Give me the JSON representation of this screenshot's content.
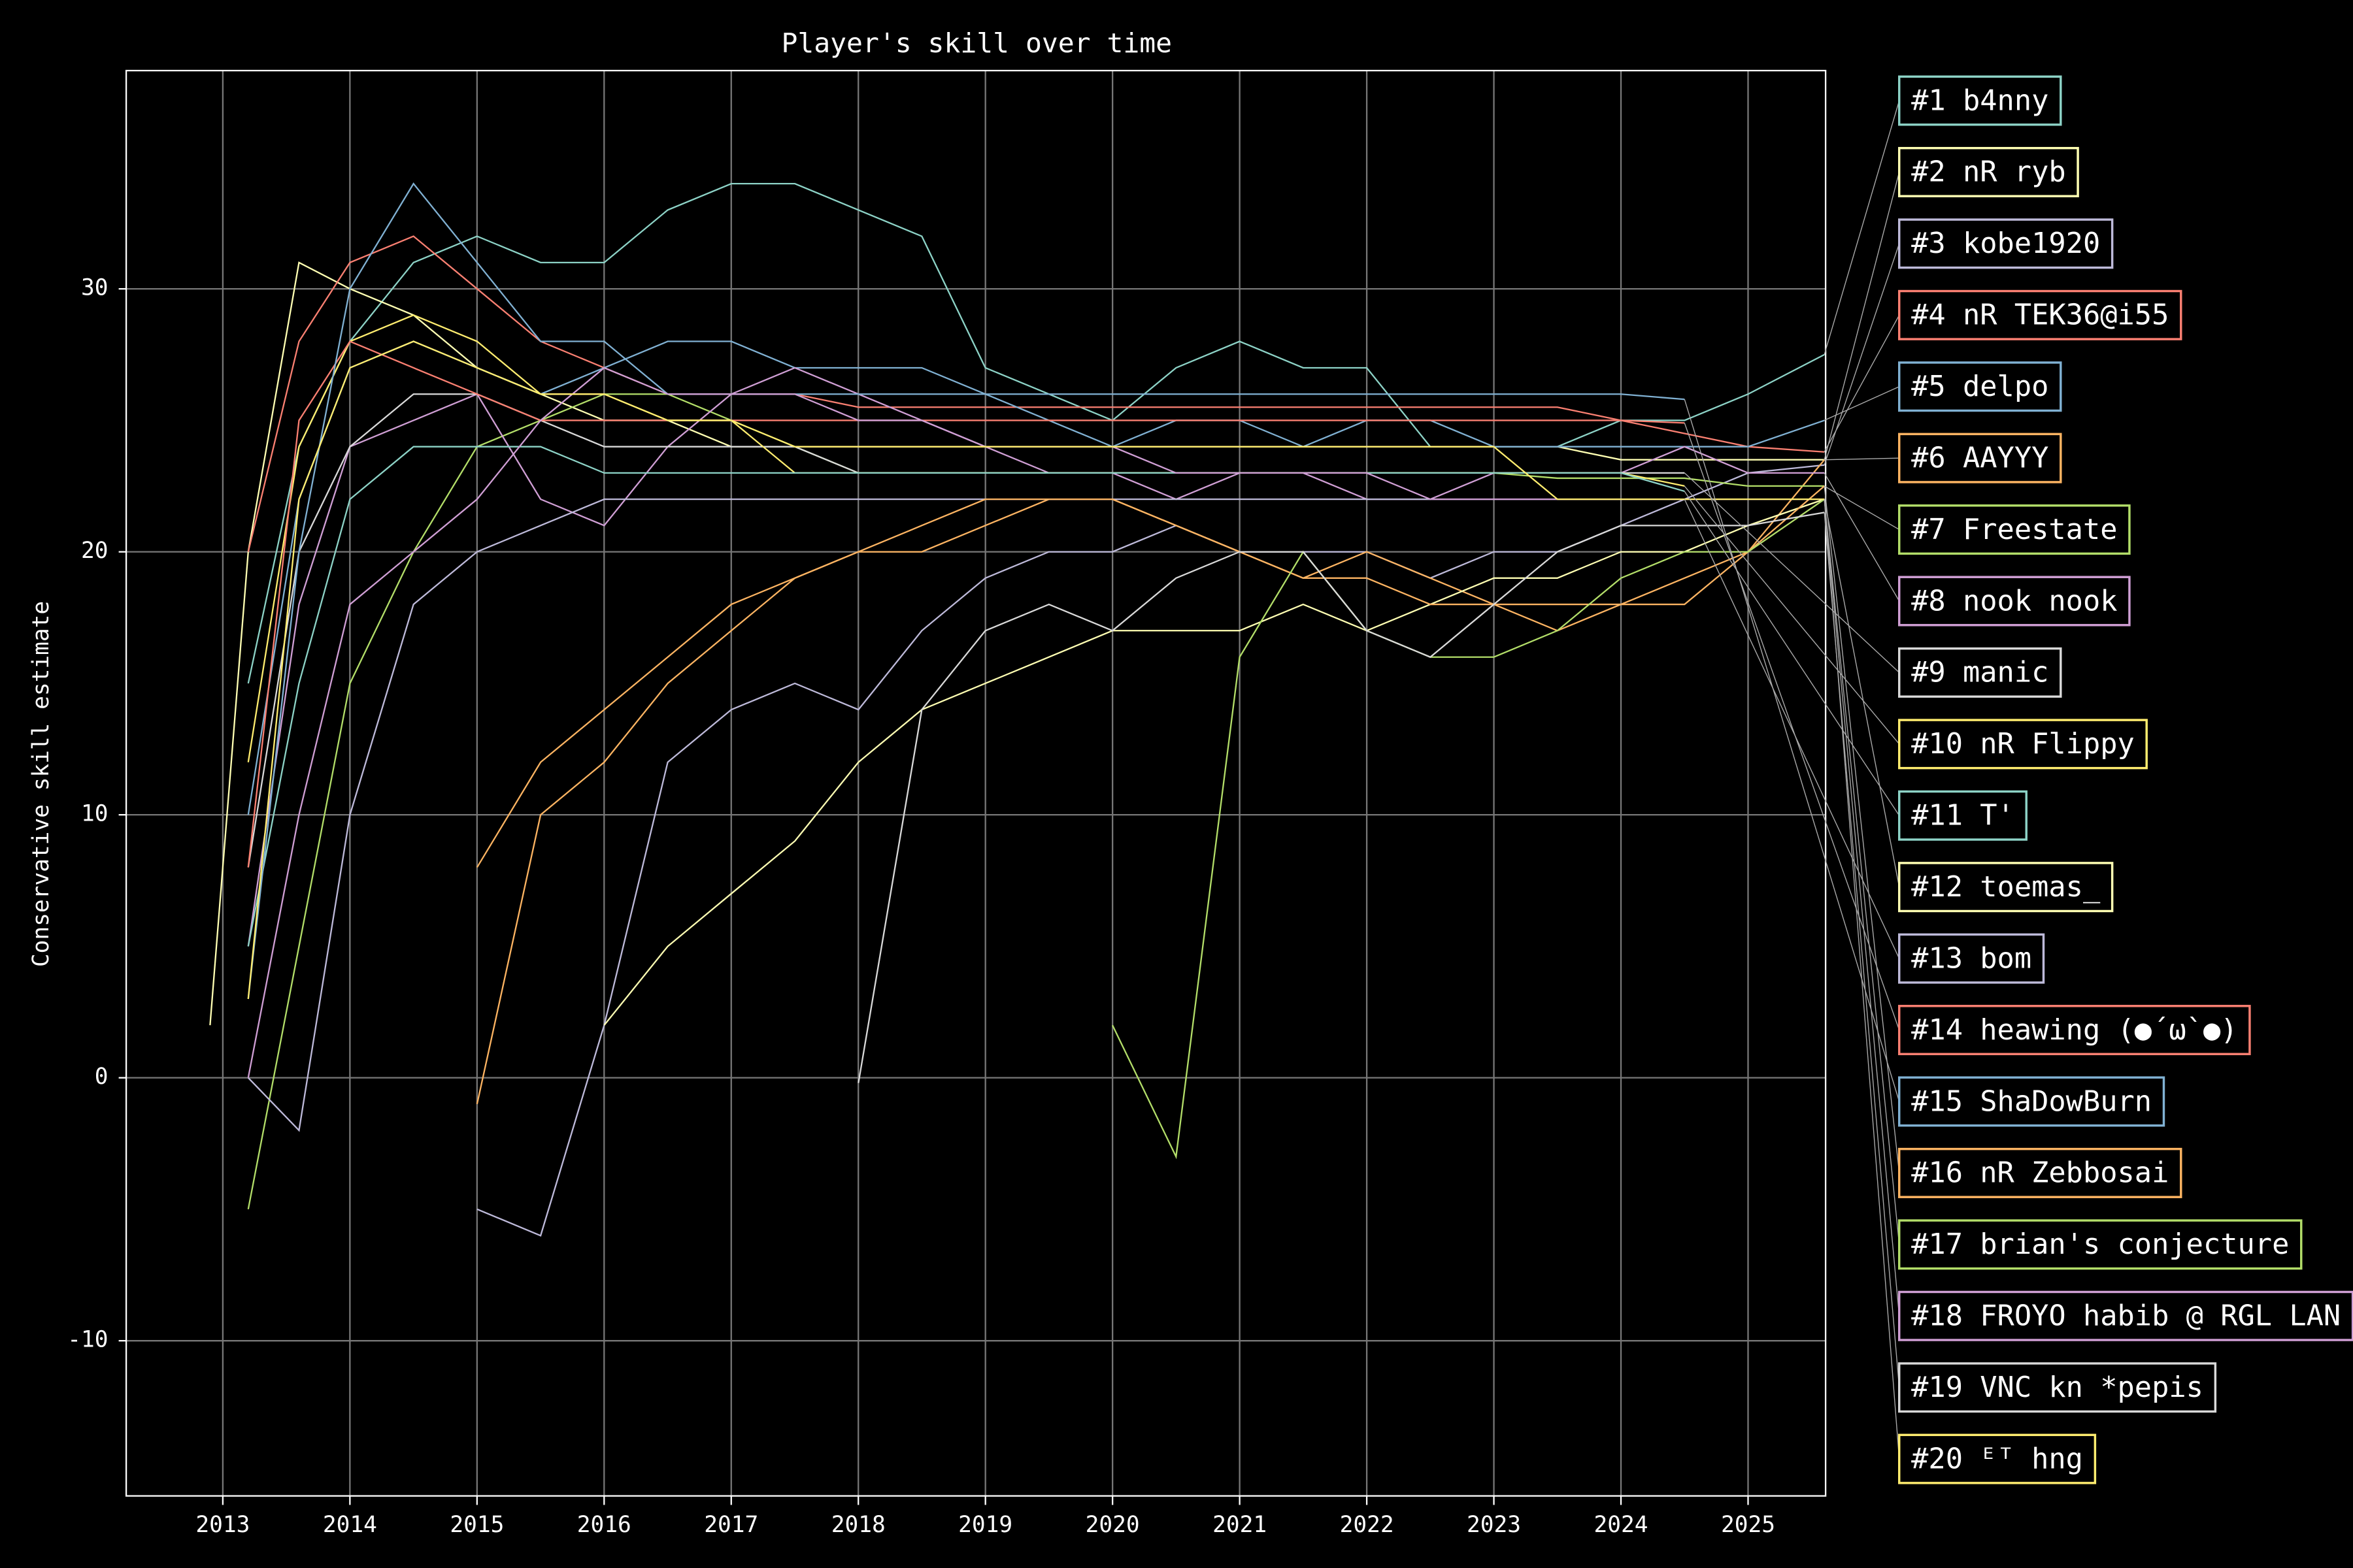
{
  "chart_data": {
    "type": "line",
    "title": "Player's skill over time",
    "y_label": "Conservative skill estimate",
    "x": [
      2012.9,
      2013.2,
      2013.6,
      2014,
      2014.5,
      2015,
      2015.5,
      2016,
      2016.5,
      2017,
      2017.5,
      2018,
      2018.5,
      2019,
      2019.5,
      2020,
      2020.5,
      2021,
      2021.5,
      2022,
      2022.5,
      2023,
      2023.5,
      2024,
      2024.5,
      2025,
      2025.6
    ],
    "xlim": [
      2012.24,
      2025.61
    ],
    "xticks": [
      2013,
      2014,
      2015,
      2016,
      2017,
      2018,
      2019,
      2020,
      2021,
      2022,
      2023,
      2024,
      2025
    ],
    "ylim": [
      -15.9,
      38.3
    ],
    "yticks": [
      -10,
      0,
      10,
      20,
      30
    ],
    "grid": true,
    "legend": "right",
    "series": [
      {
        "name": "#1 b4nny",
        "color": "#8dd3c7",
        "values": [
          null,
          15,
          24,
          28,
          31,
          32,
          31,
          31,
          33,
          34,
          34,
          33,
          32,
          27,
          26,
          25,
          27,
          28,
          27,
          27,
          24,
          24,
          24,
          25,
          25,
          26,
          27.5
        ]
      },
      {
        "name": "#2 nR ryb",
        "color": "#ffffb3",
        "values": [
          2,
          20,
          31,
          30,
          29,
          27,
          26,
          25,
          25,
          24,
          24,
          24,
          24,
          24,
          24,
          24,
          24,
          24,
          24,
          24,
          24,
          24,
          24,
          23.5,
          23.5,
          23.5,
          23.5
        ]
      },
      {
        "name": "#3 kobe1920",
        "color": "#bebada",
        "values": [
          null,
          null,
          null,
          null,
          null,
          -5,
          -6,
          2,
          12,
          14,
          15,
          14,
          17,
          19,
          20,
          20,
          21,
          20,
          20,
          20,
          19,
          20,
          20,
          21,
          22,
          23,
          23.3
        ]
      },
      {
        "name": "#4 nR TEK36@i55",
        "color": "#fb8072",
        "values": [
          null,
          20,
          28,
          31,
          32,
          30,
          28,
          27,
          26,
          26,
          26,
          25.5,
          25.5,
          25.5,
          25.5,
          25.5,
          25.5,
          25.5,
          25.5,
          25.5,
          25.5,
          25.5,
          25.5,
          25,
          24.5,
          24,
          23.8
        ]
      },
      {
        "name": "#5 delpo",
        "color": "#80b1d3",
        "values": [
          null,
          10,
          22,
          27,
          28,
          27,
          26,
          27,
          28,
          28,
          27,
          27,
          27,
          26,
          25,
          24,
          25,
          25,
          24,
          25,
          25,
          24,
          24,
          24,
          24,
          24,
          25
        ]
      },
      {
        "name": "#6 AAYYY",
        "color": "#fdb462",
        "values": [
          null,
          null,
          null,
          null,
          null,
          -1,
          10,
          12,
          15,
          17,
          19,
          20,
          20,
          21,
          22,
          22,
          21,
          20,
          19,
          20,
          19,
          18,
          18,
          18,
          19,
          20,
          23.5
        ]
      },
      {
        "name": "#7 Freestate",
        "color": "#b3de69",
        "values": [
          null,
          -5,
          5,
          15,
          20,
          24,
          25,
          26,
          26,
          25,
          24,
          23,
          23,
          23,
          23,
          23,
          23,
          23,
          23,
          23,
          23,
          23,
          22.8,
          22.8,
          22.8,
          22.5,
          22.5
        ]
      },
      {
        "name": "#8 nook nook",
        "color": "#d09fd5",
        "values": [
          null,
          5,
          18,
          24,
          25,
          26,
          22,
          21,
          24,
          26,
          27,
          26,
          25,
          24,
          23,
          23,
          22,
          23,
          23,
          22,
          22,
          23,
          23,
          23,
          24,
          23,
          23
        ]
      },
      {
        "name": "#9 manic",
        "color": "#d9d9d9",
        "values": [
          null,
          8,
          20,
          24,
          26,
          26,
          25,
          24,
          24,
          24,
          24,
          23,
          23,
          23,
          23,
          23,
          23,
          23,
          23,
          23,
          23,
          23,
          23,
          23,
          23,
          null,
          null
        ]
      },
      {
        "name": "#10 nR Flippy",
        "color": "#ffed6f",
        "values": [
          null,
          12,
          24,
          28,
          29,
          28,
          26,
          26,
          25,
          25,
          23,
          23,
          23,
          23,
          23,
          23,
          23,
          23,
          23,
          23,
          23,
          23,
          23,
          23,
          22.5,
          null,
          null
        ]
      },
      {
        "name": "#11 T'",
        "color": "#8dd3c7",
        "values": [
          null,
          5,
          15,
          22,
          24,
          24,
          24,
          23,
          23,
          23,
          23,
          23,
          23,
          23,
          23,
          23,
          23,
          23,
          23,
          23,
          23,
          23,
          23,
          23,
          22.3,
          null,
          null
        ]
      },
      {
        "name": "#12 toemas_",
        "color": "#ffffb3",
        "values": [
          null,
          null,
          null,
          null,
          null,
          null,
          null,
          2,
          5,
          7,
          9,
          12,
          14,
          15,
          16,
          17,
          17,
          17,
          18,
          17,
          18,
          19,
          19,
          20,
          20,
          21,
          22
        ]
      },
      {
        "name": "#13 bom",
        "color": "#bebada",
        "values": [
          null,
          0,
          -2,
          10,
          18,
          20,
          21,
          22,
          22,
          22,
          22,
          22,
          22,
          22,
          22,
          22,
          22,
          22,
          22,
          22,
          22,
          22,
          22,
          22,
          22,
          null,
          null
        ]
      },
      {
        "name": "#14 heawing (●´ω`●)",
        "color": "#fb8072",
        "values": [
          null,
          8,
          25,
          28,
          27,
          26,
          25,
          25,
          25,
          25,
          25,
          25,
          25,
          25,
          25,
          25,
          25,
          25,
          25,
          25,
          25,
          25,
          25,
          25,
          24.9,
          null,
          null
        ]
      },
      {
        "name": "#15 ShaDowBurn",
        "color": "#80b1d3",
        "values": [
          null,
          3,
          20,
          30,
          34,
          31,
          28,
          28,
          26,
          26,
          26,
          26,
          26,
          26,
          26,
          26,
          26,
          26,
          26,
          26,
          26,
          26,
          26,
          26,
          25.8,
          null,
          null
        ]
      },
      {
        "name": "#16 nR Zebbosai",
        "color": "#fdb462",
        "values": [
          null,
          null,
          null,
          null,
          null,
          8,
          12,
          14,
          16,
          18,
          19,
          20,
          21,
          22,
          22,
          22,
          21,
          20,
          19,
          19,
          18,
          18,
          17,
          18,
          18,
          20,
          22.5
        ]
      },
      {
        "name": "#17 brian's conjecture",
        "color": "#b3de69",
        "values": [
          null,
          null,
          null,
          null,
          null,
          null,
          null,
          null,
          null,
          null,
          null,
          null,
          null,
          null,
          null,
          2,
          -3,
          16,
          20,
          17,
          16,
          16,
          17,
          19,
          20,
          20,
          22
        ]
      },
      {
        "name": "#18 FROYO habib @ RGL LAN",
        "color": "#d09fd5",
        "values": [
          null,
          0,
          10,
          18,
          20,
          22,
          25,
          27,
          26,
          26,
          26,
          25,
          25,
          24,
          24,
          24,
          23,
          23,
          23,
          23,
          22,
          22,
          22,
          22,
          22,
          22,
          22
        ]
      },
      {
        "name": "#19 VNC kn *pepis",
        "color": "#d9d9d9",
        "values": [
          null,
          null,
          null,
          null,
          null,
          null,
          null,
          null,
          null,
          null,
          null,
          -0.2,
          14,
          17,
          18,
          17,
          19,
          20,
          20,
          17,
          16,
          18,
          20,
          21,
          21,
          21,
          21.5
        ]
      },
      {
        "name": "#20 ᴱᵀ hng",
        "color": "#ffed6f",
        "values": [
          null,
          3,
          22,
          27,
          28,
          27,
          26,
          26,
          25,
          25,
          24,
          24,
          24,
          24,
          24,
          24,
          24,
          24,
          24,
          24,
          24,
          24,
          22,
          22,
          22,
          22,
          22
        ]
      }
    ]
  }
}
